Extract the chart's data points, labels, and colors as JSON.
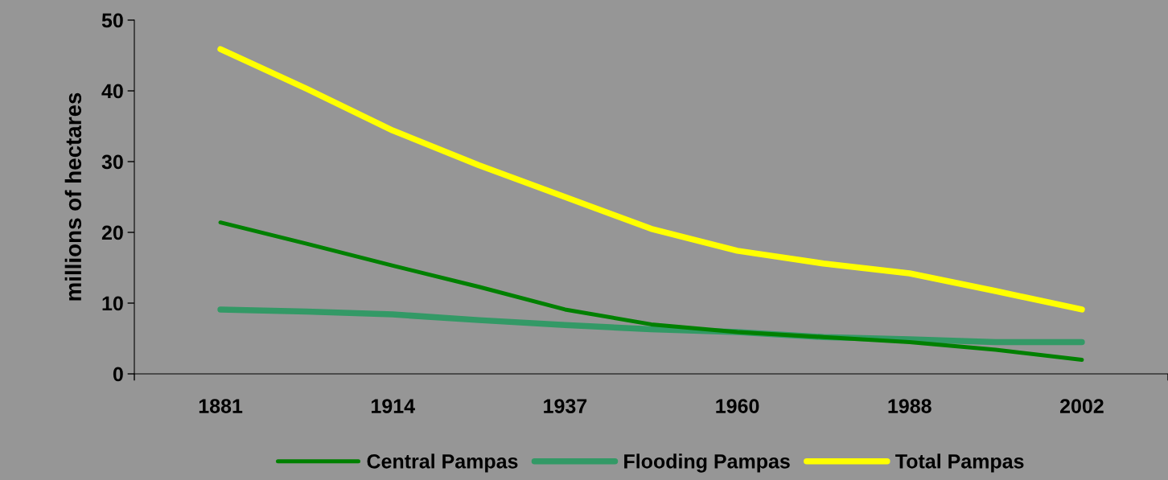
{
  "chart_data": {
    "type": "line",
    "ylabel": "millions of hectares",
    "categories": [
      "1881",
      null,
      "1914",
      null,
      "1937",
      null,
      "1960",
      null,
      "1988",
      null,
      "2002"
    ],
    "series": [
      {
        "name": "Central Pampas",
        "color": "#008000",
        "values": [
          21.4,
          18.4,
          15.3,
          12.3,
          9.1,
          7.0,
          5.9,
          5.2,
          4.5,
          3.4,
          2.0
        ]
      },
      {
        "name": "Flooding Pampas",
        "color": "#339966",
        "values": [
          9.1,
          8.8,
          8.4,
          7.6,
          6.9,
          6.3,
          5.9,
          5.2,
          4.9,
          4.5,
          4.5
        ]
      },
      {
        "name": "Total Pampas",
        "color": "#ffff00",
        "values": [
          45.9,
          40.3,
          34.4,
          29.5,
          25.0,
          20.5,
          17.4,
          15.6,
          14.2,
          11.7,
          9.1
        ]
      }
    ],
    "ylim": [
      0,
      50
    ],
    "yticks": [
      0,
      10,
      20,
      30,
      40,
      50
    ],
    "grid": false,
    "legend": "bottom",
    "marker": "none",
    "line_style": "solid"
  }
}
